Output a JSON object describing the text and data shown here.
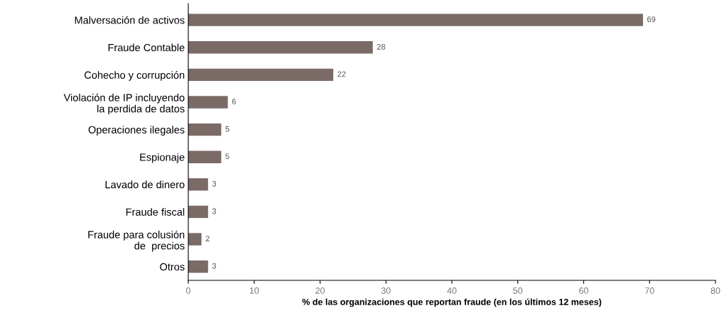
{
  "chart_data": {
    "type": "bar",
    "orientation": "horizontal",
    "categories": [
      "Malversación de activos",
      "Fraude Contable",
      "Cohecho y corrupción",
      "Violación de IP incluyendo\nla perdida de datos",
      "Operaciones ilegales",
      "Espionaje",
      "Lavado de dinero",
      "Fraude fiscal",
      "Fraude para colusión\nde  precios",
      "Otros"
    ],
    "values": [
      69,
      28,
      22,
      6,
      5,
      5,
      3,
      3,
      2,
      3
    ],
    "color": "#7b6b67",
    "xlim": [
      0,
      80
    ],
    "xticks": [
      0,
      10,
      20,
      30,
      40,
      50,
      60,
      70,
      80
    ],
    "xlabel": "% de las organizaciones que reportan fraude (en los últimos 12 meses)",
    "data_labels": true,
    "grid": false,
    "legend": false
  }
}
